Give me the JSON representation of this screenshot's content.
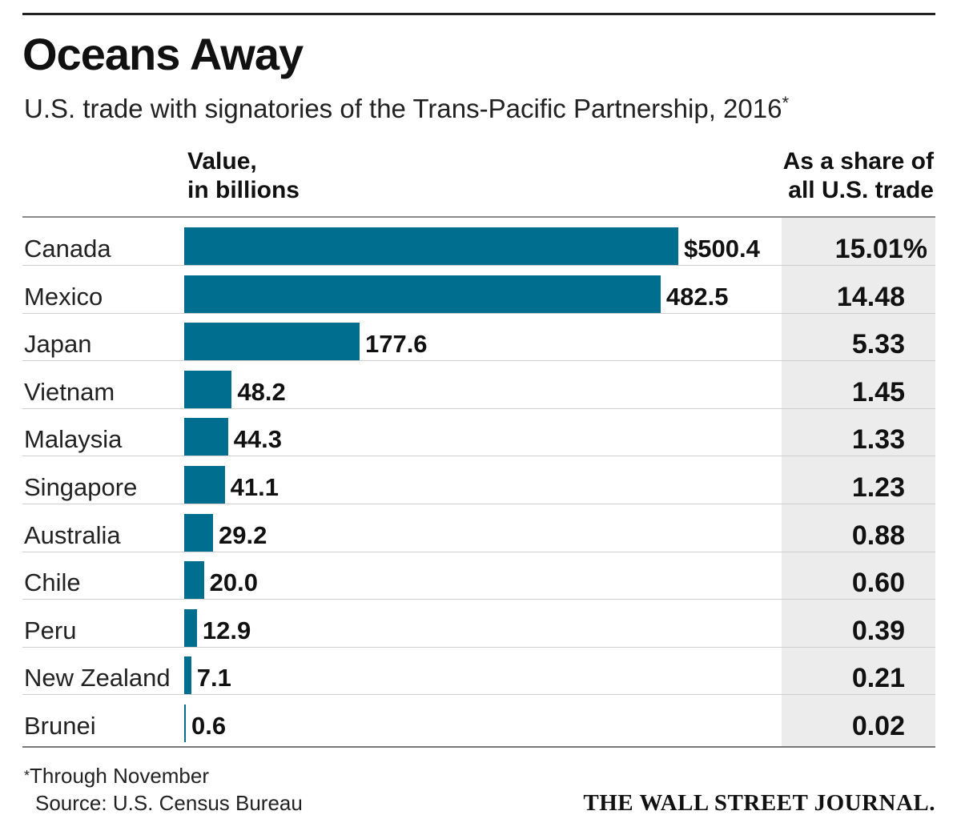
{
  "chart_data": {
    "type": "bar",
    "orientation": "horizontal",
    "title": "Oceans Away",
    "subtitle": "U.S. trade with signatories of the Trans-Pacific Partnership, 2016",
    "subtitle_mark": "*",
    "value_header_line1": "Value,",
    "value_header_line2": "in billions",
    "share_header_line1": "As a share of",
    "share_header_line2": "all U.S. trade",
    "categories": [
      "Canada",
      "Mexico",
      "Japan",
      "Vietnam",
      "Malaysia",
      "Singapore",
      "Australia",
      "Chile",
      "Peru",
      "New Zealand",
      "Brunei"
    ],
    "values": [
      500.4,
      482.5,
      177.6,
      48.2,
      44.3,
      41.1,
      29.2,
      20.0,
      12.9,
      7.1,
      0.6
    ],
    "value_labels": [
      "$500.4",
      "482.5",
      "177.6",
      "48.2",
      "44.3",
      "41.1",
      "29.2",
      "20.0",
      "12.9",
      "7.1",
      "0.6"
    ],
    "shares": [
      15.01,
      14.48,
      5.33,
      1.45,
      1.33,
      1.23,
      0.88,
      0.6,
      0.39,
      0.21,
      0.02
    ],
    "share_labels": [
      "15.01%",
      "14.48",
      "5.33",
      "1.45",
      "1.33",
      "1.23",
      "0.88",
      "0.60",
      "0.39",
      "0.21",
      "0.02"
    ],
    "xlim": [
      0,
      500.4
    ],
    "bar_color": "#006f8f",
    "share_column_bg": "#ececec"
  },
  "footer": {
    "footnote_mark": "*",
    "footnote": "Through November",
    "source": "Source: U.S. Census Bureau",
    "brand": "THE WALL STREET JOURNAL."
  }
}
